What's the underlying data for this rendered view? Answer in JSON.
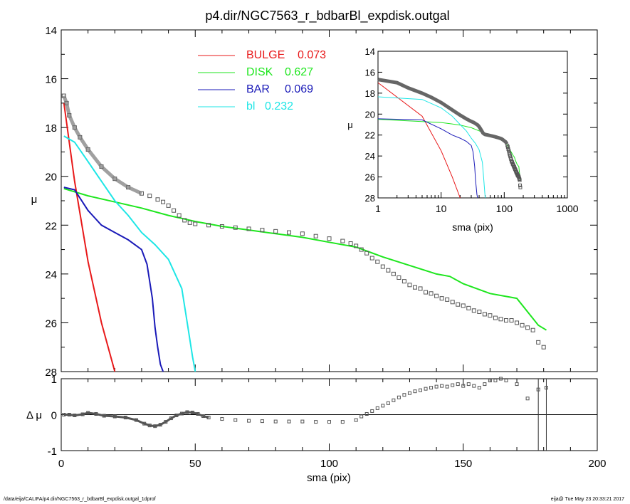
{
  "title": "p4.dir/NGC7563_r_bdbarBl_expdisk.outgal",
  "footer": {
    "left": "/data/eija/CALIFA/p4.dir/NGC7563_r_bdbarBl_expdisk.outgal_1dprof",
    "right": "eija@  Tue May 23 20:33:21 2017"
  },
  "colors": {
    "bulge": "#e8191a",
    "disk": "#1ee61e",
    "bar": "#1a1ab8",
    "bl": "#1ee6e6",
    "data": "#555555"
  },
  "chart_data": [
    {
      "name": "main",
      "type": "line",
      "xlabel": "sma (pix)",
      "ylabel": "μ",
      "xlim": [
        0,
        200
      ],
      "ylim": [
        28,
        14
      ],
      "xticks": [
        "0",
        "50",
        "100",
        "150",
        "200"
      ],
      "yticks": [
        "14",
        "16",
        "18",
        "20",
        "22",
        "24",
        "26",
        "28"
      ],
      "legend": {
        "placement": "top-center",
        "entries": [
          {
            "key": "bulge",
            "label": "BULGE",
            "value": "0.073"
          },
          {
            "key": "disk",
            "label": "DISK",
            "value": "0.627"
          },
          {
            "key": "bar",
            "label": "BAR",
            "value": "0.069"
          },
          {
            "key": "bl",
            "label": "bl",
            "value": "0.232"
          }
        ]
      },
      "series": [
        {
          "key": "bulge",
          "x": [
            1,
            5,
            10,
            15,
            20
          ],
          "y": [
            17.0,
            20.2,
            23.5,
            26.0,
            28.0
          ]
        },
        {
          "key": "disk",
          "x": [
            1,
            10,
            20,
            30,
            40,
            50,
            60,
            70,
            80,
            90,
            100,
            110,
            115,
            120,
            130,
            140,
            145,
            150,
            160,
            170,
            178,
            181
          ],
          "y": [
            20.5,
            20.8,
            21.05,
            21.3,
            21.6,
            21.85,
            22.05,
            22.2,
            22.35,
            22.5,
            22.7,
            22.9,
            23.1,
            23.3,
            23.65,
            24.0,
            24.1,
            24.4,
            24.8,
            25.0,
            26.1,
            26.3
          ]
        },
        {
          "key": "bar",
          "x": [
            1,
            5,
            10,
            15,
            20,
            25,
            30,
            32,
            34,
            35,
            36,
            37,
            38
          ],
          "y": [
            20.45,
            20.55,
            21.4,
            22.0,
            22.3,
            22.6,
            23.0,
            23.6,
            25.0,
            26.2,
            27.0,
            27.7,
            28.0
          ]
        },
        {
          "key": "bl",
          "x": [
            1,
            5,
            10,
            15,
            20,
            25,
            30,
            35,
            40,
            45,
            47,
            49,
            50
          ],
          "y": [
            18.35,
            18.6,
            19.4,
            20.2,
            21.0,
            21.6,
            22.3,
            22.8,
            23.4,
            24.6,
            26.0,
            27.4,
            28.0
          ]
        },
        {
          "key": "data",
          "x": [
            1,
            2,
            3,
            5,
            7,
            10,
            15,
            20,
            25,
            30,
            33,
            36,
            38,
            40,
            42,
            44,
            46,
            48,
            50,
            55,
            60,
            65,
            70,
            75,
            80,
            85,
            90,
            95,
            100,
            105,
            108,
            110,
            112,
            114,
            116,
            118,
            120,
            122,
            124,
            126,
            128,
            130,
            132,
            134,
            136,
            138,
            140,
            142,
            144,
            146,
            148,
            150,
            152,
            154,
            156,
            158,
            160,
            162,
            164,
            166,
            168,
            170,
            172,
            174,
            176,
            178,
            180
          ],
          "y": [
            16.7,
            17.0,
            17.5,
            18.0,
            18.4,
            18.9,
            19.6,
            20.1,
            20.45,
            20.7,
            20.8,
            20.95,
            21.05,
            21.2,
            21.4,
            21.6,
            21.8,
            21.9,
            21.95,
            22.0,
            22.05,
            22.1,
            22.15,
            22.2,
            22.25,
            22.3,
            22.35,
            22.45,
            22.55,
            22.65,
            22.75,
            22.85,
            23.0,
            23.15,
            23.35,
            23.5,
            23.7,
            23.85,
            24.0,
            24.15,
            24.3,
            24.45,
            24.55,
            24.6,
            24.75,
            24.8,
            24.9,
            25.0,
            25.05,
            25.15,
            25.25,
            25.3,
            25.4,
            25.5,
            25.55,
            25.65,
            25.7,
            25.8,
            25.85,
            25.9,
            25.9,
            26.0,
            26.1,
            26.2,
            26.3,
            26.8,
            27.0
          ]
        }
      ]
    },
    {
      "name": "residual",
      "type": "scatter",
      "xlabel": "sma (pix)",
      "ylabel": "Δ μ",
      "xlim": [
        0,
        200
      ],
      "ylim": [
        -1,
        1
      ],
      "yticks": [
        "-1",
        "0",
        "1"
      ],
      "x": [
        1,
        3,
        5,
        8,
        10,
        13,
        16,
        20,
        24,
        28,
        31,
        33,
        35,
        37,
        39,
        41,
        43,
        45,
        47,
        49,
        51,
        53,
        55,
        60,
        65,
        70,
        75,
        80,
        85,
        90,
        95,
        100,
        105,
        110,
        112,
        114,
        116,
        118,
        120,
        122,
        124,
        126,
        128,
        130,
        132,
        134,
        136,
        138,
        140,
        142,
        144,
        146,
        148,
        150,
        152,
        154,
        156,
        158,
        160,
        162,
        164,
        166,
        170,
        174,
        178,
        181
      ],
      "y": [
        0.0,
        0.0,
        -0.02,
        0.01,
        0.05,
        0.02,
        -0.03,
        -0.05,
        -0.08,
        -0.15,
        -0.25,
        -0.3,
        -0.32,
        -0.28,
        -0.2,
        -0.1,
        -0.02,
        0.03,
        0.07,
        0.06,
        0.02,
        -0.04,
        -0.08,
        -0.12,
        -0.15,
        -0.17,
        -0.18,
        -0.19,
        -0.19,
        -0.19,
        -0.2,
        -0.2,
        -0.2,
        -0.15,
        -0.05,
        0.02,
        0.1,
        0.18,
        0.25,
        0.32,
        0.4,
        0.48,
        0.55,
        0.6,
        0.65,
        0.68,
        0.72,
        0.75,
        0.78,
        0.8,
        0.78,
        0.82,
        0.85,
        0.8,
        0.85,
        0.8,
        0.75,
        0.85,
        0.95,
        0.95,
        1.0,
        0.95,
        0.85,
        0.45,
        0.7,
        0.75
      ]
    },
    {
      "name": "inset",
      "type": "line",
      "xlabel": "sma (pix)",
      "ylabel": "μ",
      "xscale": "log",
      "xlim": [
        1,
        1000
      ],
      "ylim": [
        28,
        14
      ],
      "xticks": [
        "1",
        "10",
        "100",
        "1000"
      ],
      "yticks": [
        "14",
        "16",
        "18",
        "20",
        "22",
        "24",
        "26",
        "28"
      ]
    }
  ]
}
